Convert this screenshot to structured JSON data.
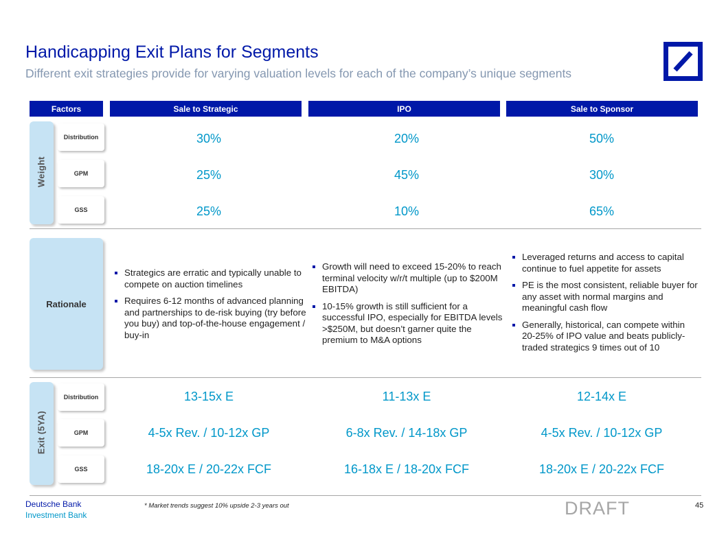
{
  "header": {
    "title": "Handicapping Exit Plans for Segments",
    "subtitle": "Different exit strategies provide for varying valuation levels for each of the company’s unique segments"
  },
  "columns": {
    "factors": "Factors",
    "strategic": "Sale to Strategic",
    "ipo": "IPO",
    "sponsor": "Sale to Sponsor"
  },
  "weight": {
    "label": "Weight",
    "rows": [
      {
        "label": "Distribution",
        "strategic": "30%",
        "ipo": "20%",
        "sponsor": "50%"
      },
      {
        "label": "GPM",
        "strategic": "25%",
        "ipo": "45%",
        "sponsor": "30%"
      },
      {
        "label": "GSS",
        "strategic": "25%",
        "ipo": "10%",
        "sponsor": "65%"
      }
    ]
  },
  "rationale": {
    "label": "Rationale",
    "strategic": [
      "Strategics are erratic and typically unable to compete on auction timelines",
      "Requires 6-12 months of advanced planning and partnerships to de-risk buying (try before you buy) and top-of-the-house engagement / buy-in"
    ],
    "ipo": [
      "Growth will need to exceed 15-20% to reach terminal velocity w/r/t multiple (up to $200M EBITDA)",
      "10-15% growth is still sufficient for a successful IPO, especially for EBITDA levels >$250M, but doesn’t garner quite the premium to M&A options"
    ],
    "sponsor": [
      "Leveraged returns and access to capital continue to fuel appetite for assets",
      "PE is the most consistent, reliable buyer for any asset with normal margins and meaningful cash flow",
      "Generally, historical, can compete within 20-25% of IPO value and beats publicly-traded strategics 9 times out of 10"
    ]
  },
  "exit": {
    "label": "Exit (5YA)",
    "rows": [
      {
        "label": "Distribution",
        "strategic": "13-15x E",
        "ipo": "11-13x E",
        "sponsor": "12-14x E"
      },
      {
        "label": "GPM",
        "strategic": "4-5x Rev. / 10-12x GP",
        "ipo": "6-8x Rev. / 14-18x GP",
        "sponsor": "4-5x Rev. / 10-12x GP"
      },
      {
        "label": "GSS",
        "strategic": "18-20x E / 20-22x FCF",
        "ipo": "16-18x E / 18-20x FCF",
        "sponsor": "18-20x E / 20-22x FCF"
      }
    ]
  },
  "footer": {
    "company": "Deutsche Bank",
    "division": "Investment Bank",
    "footnote": "* Market trends suggest 10% upside 2-3 years out",
    "draft": "DRAFT",
    "page": "45"
  },
  "colors": {
    "brand": "#0018a8",
    "accent": "#0097c9",
    "sidebar": "#c6e3f4"
  }
}
